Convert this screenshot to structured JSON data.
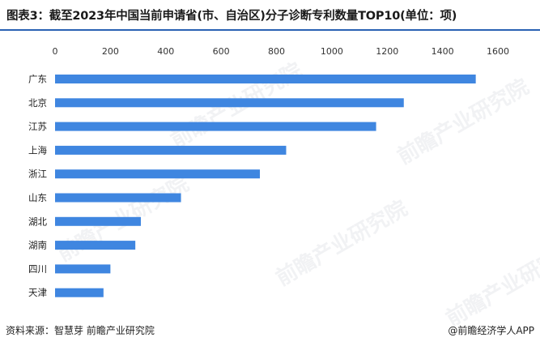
{
  "title": "图表3：截至2023年中国当前申请省(市、自治区)分子诊断专利数量TOP10(单位：项)",
  "footer": {
    "source": "资料来源：智慧芽 前瞻产业研究院",
    "credit": "@前瞻经济学人APP"
  },
  "watermark": "前瞻产业研究院",
  "colors": {
    "bar": "#3f86e0",
    "title_rule": "#2a62b3"
  },
  "chart_data": {
    "type": "bar",
    "orientation": "horizontal",
    "title": "图表3：截至2023年中国当前申请省(市、自治区)分子诊断专利数量TOP10(单位：项)",
    "categories": [
      "广东",
      "北京",
      "江苏",
      "上海",
      "浙江",
      "山东",
      "湖北",
      "湖南",
      "四川",
      "天津"
    ],
    "values": [
      1520,
      1260,
      1160,
      835,
      740,
      455,
      310,
      290,
      200,
      175
    ],
    "xlim": [
      0,
      1600
    ],
    "xticks": [
      0,
      200,
      400,
      600,
      800,
      1000,
      1200,
      1400,
      1600
    ],
    "xaxis_position": "top",
    "grid": false,
    "legend": "none"
  }
}
